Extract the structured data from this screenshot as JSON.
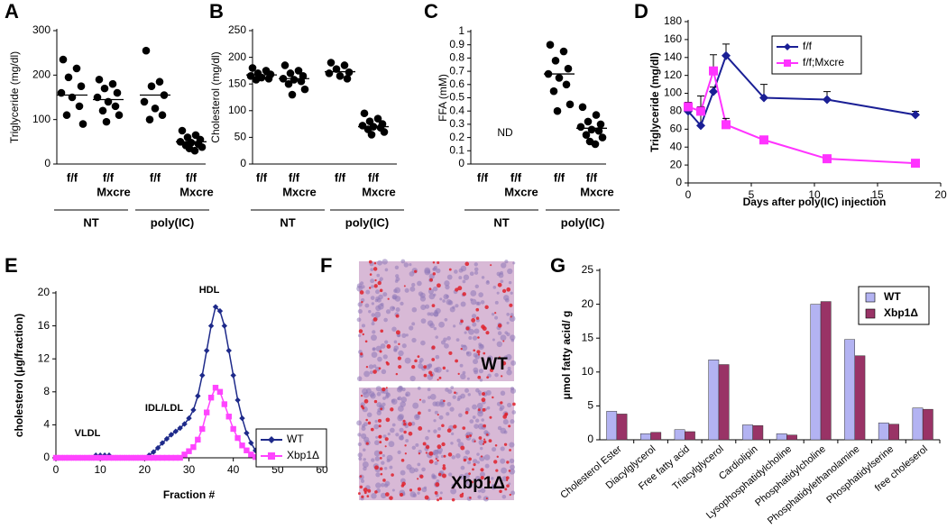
{
  "chart_data": [
    {
      "type": "dot",
      "panel": "A",
      "ylabel": "Triglyceride (mg/dl)",
      "categories": [
        [
          "f/f"
        ],
        [
          "f/f",
          "Mxcre"
        ],
        [
          "f/f"
        ],
        [
          "f/f",
          "Mxcre"
        ]
      ],
      "groups": [
        "NT",
        "poly(IC)"
      ],
      "ylim": [
        0,
        300
      ],
      "yticks": [
        0,
        100,
        200,
        300
      ],
      "color": "#000000",
      "points": [
        [
          235,
          215,
          195,
          175,
          160,
          150,
          130,
          110,
          90
        ],
        [
          190,
          180,
          170,
          160,
          150,
          140,
          130,
          120,
          110,
          95
        ],
        [
          255,
          185,
          175,
          155,
          140,
          125,
          110,
          100
        ],
        [
          75,
          65,
          60,
          55,
          50,
          48,
          45,
          42,
          38,
          35,
          30
        ]
      ],
      "means": [
        155,
        145,
        155,
        50
      ]
    },
    {
      "type": "dot",
      "panel": "B",
      "ylabel": "Cholesterol (mg/dl)",
      "categories": [
        [
          "f/f"
        ],
        [
          "f/f",
          "Mxcre"
        ],
        [
          "f/f"
        ],
        [
          "f/f",
          "Mxcre"
        ]
      ],
      "groups": [
        "NT",
        "poly(IC)"
      ],
      "ylim": [
        0,
        250
      ],
      "yticks": [
        0,
        50,
        100,
        150,
        200,
        250
      ],
      "color": "#000000",
      "points": [
        [
          180,
          175,
          170,
          168,
          165,
          162,
          160,
          158
        ],
        [
          185,
          175,
          170,
          165,
          160,
          158,
          155,
          150,
          140,
          130
        ],
        [
          190,
          185,
          178,
          172,
          170,
          165,
          160
        ],
        [
          95,
          85,
          80,
          75,
          72,
          70,
          68,
          65,
          60,
          55
        ]
      ],
      "means": [
        167,
        160,
        173,
        70
      ]
    },
    {
      "type": "dot",
      "panel": "C",
      "ylabel": "FFA (mM)",
      "categories": [
        [
          "f/f"
        ],
        [
          "f/f",
          "Mxcre"
        ],
        [
          "f/f"
        ],
        [
          "f/f",
          "Mxcre"
        ]
      ],
      "groups": [
        "NT",
        "poly(IC)"
      ],
      "ylim": [
        0,
        1
      ],
      "yticks": [
        0,
        0.1,
        0.2,
        0.3,
        0.4,
        0.5,
        0.6,
        0.7,
        0.8,
        0.9,
        1
      ],
      "color": "#000000",
      "annotations": [
        "ND"
      ],
      "points": [
        [],
        [],
        [
          0.9,
          0.85,
          0.78,
          0.72,
          0.68,
          0.65,
          0.6,
          0.55,
          0.45,
          0.4
        ],
        [
          0.43,
          0.37,
          0.32,
          0.3,
          0.28,
          0.26,
          0.25,
          0.22,
          0.2,
          0.17,
          0.15
        ]
      ],
      "means": [
        null,
        null,
        0.68,
        0.27
      ]
    },
    {
      "type": "line",
      "panel": "D",
      "ylabel": "Triglyceride (mg/dl)",
      "xlabel": "Days after poly(IC) injection",
      "x": [
        0,
        1,
        2,
        3,
        6,
        11,
        18
      ],
      "xlim": [
        0,
        20
      ],
      "xticks": [
        0,
        5,
        10,
        15,
        20
      ],
      "ylim": [
        0,
        180
      ],
      "yticks": [
        0,
        20,
        40,
        60,
        80,
        100,
        120,
        140,
        160,
        180
      ],
      "legend": "upper right",
      "series": [
        {
          "name": "f/f",
          "color": "#1a1f95",
          "marker": "diamond",
          "values": [
            80,
            64,
            102,
            142,
            95,
            93,
            76
          ],
          "errors": [
            8,
            33,
            5,
            13,
            15,
            9,
            4
          ]
        },
        {
          "name": "f/f;Mxcre",
          "color": "#ff33ff",
          "marker": "square",
          "values": [
            85,
            80,
            125,
            65,
            48,
            27,
            22
          ],
          "errors": [
            5,
            5,
            18,
            7,
            3,
            2,
            2
          ]
        }
      ]
    },
    {
      "type": "line",
      "panel": "E",
      "ylabel": "cholesterol (μg/fraction)",
      "xlabel": "Fraction #",
      "annotations": [
        "VLDL",
        "IDL/LDL",
        "HDL"
      ],
      "x": [
        0,
        1,
        2,
        3,
        4,
        5,
        6,
        7,
        8,
        9,
        10,
        11,
        12,
        13,
        14,
        15,
        16,
        17,
        18,
        19,
        20,
        21,
        22,
        23,
        24,
        25,
        26,
        27,
        28,
        29,
        30,
        31,
        32,
        33,
        34,
        35,
        36,
        37,
        38,
        39,
        40,
        41,
        42,
        43,
        44,
        45,
        46,
        47,
        48,
        49,
        50,
        51,
        52,
        53,
        54,
        55,
        56,
        57,
        58,
        59,
        60
      ],
      "xlim": [
        0,
        60
      ],
      "xticks": [
        0,
        10,
        20,
        30,
        40,
        50,
        60
      ],
      "ylim": [
        0,
        20
      ],
      "yticks": [
        0,
        4,
        8,
        12,
        16,
        20
      ],
      "legend": "lower right",
      "series": [
        {
          "name": "WT",
          "color": "#1e2a8a",
          "marker": "diamond",
          "values": [
            0,
            0,
            0,
            0,
            0,
            0,
            0,
            0,
            0,
            0.3,
            0.3,
            0.3,
            0.3,
            0,
            0,
            0,
            0,
            0,
            0,
            0,
            0,
            0.3,
            0.7,
            1.2,
            1.8,
            2.3,
            2.8,
            3.2,
            3.6,
            4.1,
            4.8,
            5.8,
            7.5,
            10,
            13,
            16,
            18.3,
            17.8,
            16,
            13,
            10,
            7,
            4.8,
            3,
            1.8,
            0.9,
            0.4,
            0.1,
            0,
            0,
            0,
            0,
            0,
            0,
            0,
            0,
            0,
            0,
            0,
            0,
            0
          ]
        },
        {
          "name": "Xbp1Δ",
          "color": "#ff44ff",
          "marker": "square",
          "values": [
            0,
            0,
            0,
            0,
            0,
            0,
            0,
            0,
            0,
            0,
            0,
            0,
            0,
            0,
            0,
            0,
            0,
            0,
            0,
            0,
            0,
            0,
            0,
            0,
            0,
            0,
            0,
            0,
            0,
            0.4,
            0.8,
            1.3,
            2.2,
            3.5,
            5.5,
            7.3,
            8.5,
            8,
            6.5,
            5,
            3.5,
            2.4,
            1.5,
            0.9,
            0.4,
            0.1,
            0,
            0,
            0,
            0,
            0,
            0,
            0,
            0,
            0,
            0,
            0,
            0,
            0,
            0,
            0
          ]
        }
      ]
    },
    {
      "type": "image",
      "panel": "F",
      "labels": [
        "WT",
        "Xbp1Δ"
      ]
    },
    {
      "type": "bar",
      "panel": "G",
      "ylabel": "μmol fatty acid/ g",
      "categories": [
        "Cholesterol Ester",
        "Diacylglycerol",
        "Free fatty acid",
        "Triacylglycerol",
        "Cardiolipin",
        "Lysophosphatidylcholine",
        "Phosphatidylcholine",
        "Phosphatidylethanolamine",
        "Phosphatidylserine",
        "free choleserol"
      ],
      "ylim": [
        0,
        25
      ],
      "yticks": [
        0,
        5,
        10,
        15,
        20,
        25
      ],
      "legend": "upper right",
      "series": [
        {
          "name": "WT",
          "color": "#b3b3f2",
          "values": [
            4.2,
            0.9,
            1.5,
            11.8,
            2.2,
            0.9,
            20,
            14.8,
            2.5,
            4.7
          ]
        },
        {
          "name": "Xbp1Δ",
          "color": "#993366",
          "values": [
            3.8,
            1.1,
            1.2,
            11.1,
            2.1,
            0.7,
            20.4,
            12.4,
            2.3,
            4.5
          ]
        }
      ]
    }
  ]
}
